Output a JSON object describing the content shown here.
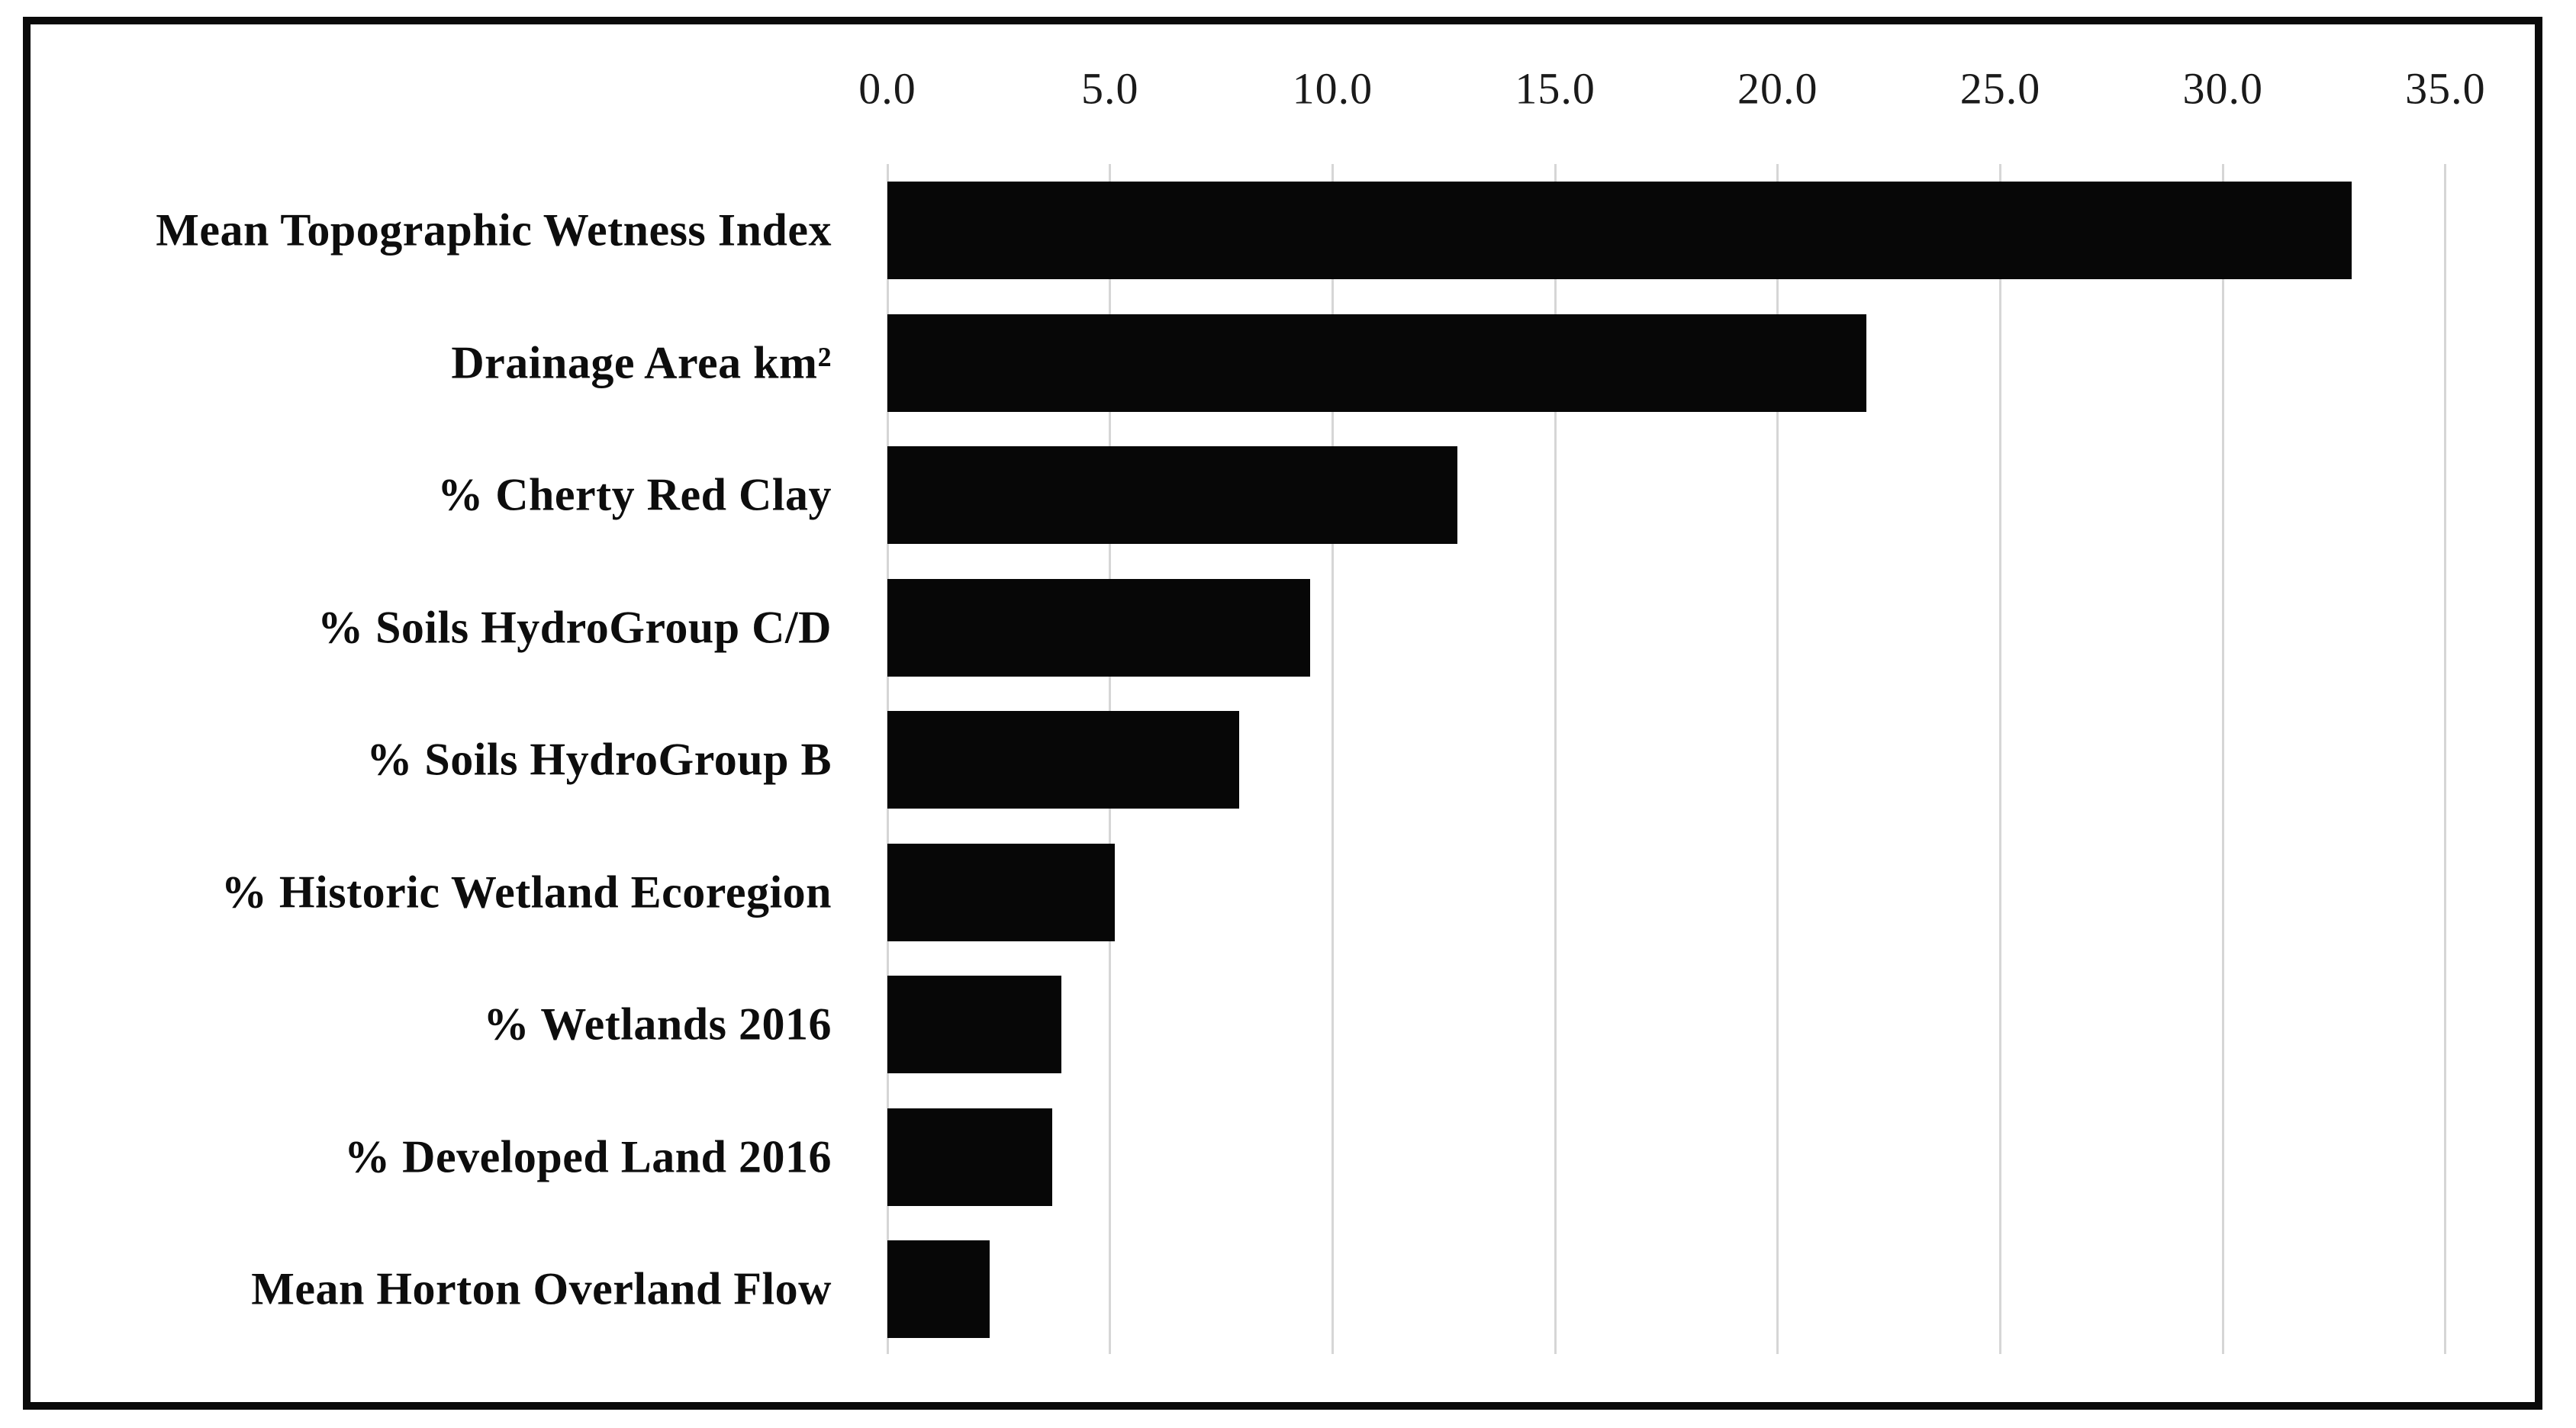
{
  "chart_data": {
    "type": "bar",
    "orientation": "horizontal",
    "categories": [
      "Mean Topographic Wetness Index",
      "Drainage Area km²",
      "% Cherty Red Clay",
      "% Soils HydroGroup C/D",
      "% Soils HydroGroup B",
      "% Historic Wetland Ecoregion",
      "% Wetlands 2016",
      "% Developed Land 2016",
      "Mean Horton Overland Flow"
    ],
    "values": [
      32.9,
      22.0,
      12.8,
      9.5,
      7.9,
      5.1,
      3.9,
      3.7,
      2.3
    ],
    "x_axis": {
      "position": "top",
      "tick_values": [
        0,
        5,
        10,
        15,
        20,
        25,
        30,
        35
      ],
      "tick_labels": [
        "0.0",
        "5.0",
        "10.0",
        "15.0",
        "20.0",
        "25.0",
        "30.0",
        "35.0"
      ],
      "range": [
        0,
        36.6
      ]
    },
    "title": "",
    "xlabel": "",
    "ylabel": "",
    "legend": "none",
    "grid": "vertical-only",
    "colors": {
      "bar": "#070707",
      "gridline": "#d6d6d6",
      "frame_border": "#0a0a0a",
      "background": "#ffffff",
      "text": "#0d0d0d"
    }
  }
}
